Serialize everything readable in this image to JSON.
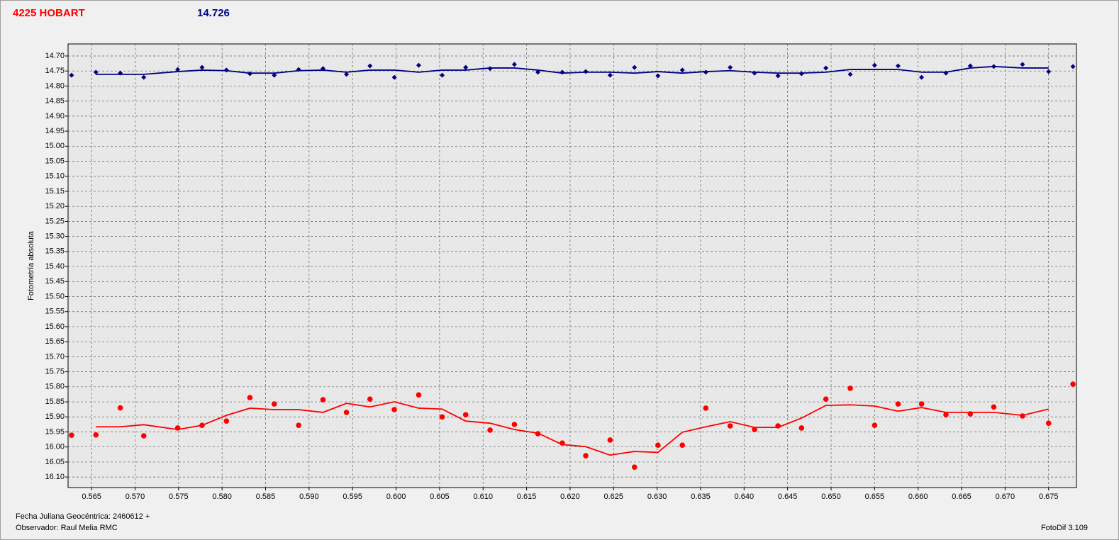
{
  "chart_data": {
    "type": "scatter",
    "title": "4225 HOBART",
    "subtitle": "14.726",
    "ylabel": "Fotometría absoluta",
    "xlabel": "Fecha Juliana Geocéntrica: 2460612 +",
    "observer": "Observador: Raul Melia RMC",
    "software": "FotoDif 3.109",
    "title_color": "#ff0000",
    "subtitle_color": "#000080",
    "y_inverted": true,
    "grid": true,
    "xlim": [
      0.5623,
      0.6782
    ],
    "ylim": [
      14.66,
      16.135
    ],
    "xticks": [
      0.565,
      {
        "value": 0.57,
        "label": "0.570"
      },
      0.575,
      {
        "value": 0.58,
        "label": "0.580"
      },
      0.585,
      {
        "value": 0.59,
        "label": "0.590"
      },
      0.595,
      {
        "value": 0.6,
        "label": "0.600"
      },
      0.605,
      {
        "value": 0.61,
        "label": "0.610"
      },
      0.615,
      {
        "value": 0.62,
        "label": "0.620"
      },
      0.625,
      {
        "value": 0.63,
        "label": "0.630"
      },
      0.635,
      {
        "value": 0.64,
        "label": "0.640"
      },
      0.645,
      {
        "value": 0.65,
        "label": "0.650"
      },
      0.655,
      {
        "value": 0.66,
        "label": "0.660"
      },
      0.665,
      {
        "value": 0.67,
        "label": "0.670"
      },
      0.675
    ],
    "yticks": [
      {
        "value": 14.7,
        "label": "14.70"
      },
      14.75,
      {
        "value": 14.8,
        "label": "14.80"
      },
      14.85,
      {
        "value": 14.9,
        "label": "14.90"
      },
      14.95,
      {
        "value": 15,
        "label": "15.00"
      },
      15.05,
      {
        "value": 15.1,
        "label": "15.10"
      },
      15.15,
      {
        "value": 15.2,
        "label": "15.20"
      },
      15.25,
      {
        "value": 15.3,
        "label": "15.30"
      },
      15.35,
      {
        "value": 15.4,
        "label": "15.40"
      },
      15.45,
      {
        "value": 15.5,
        "label": "15.50"
      },
      15.55,
      {
        "value": 15.6,
        "label": "15.60"
      },
      15.65,
      {
        "value": 15.7,
        "label": "15.70"
      },
      15.75,
      {
        "value": 15.8,
        "label": "15.80"
      },
      15.85,
      {
        "value": 15.9,
        "label": "15.90"
      },
      15.95,
      {
        "value": 16,
        "label": "16.00"
      },
      16.05,
      {
        "value": 16.1,
        "label": "16.10"
      }
    ],
    "x": [
      0.5627,
      0.5655,
      0.5683,
      0.571,
      0.5749,
      0.5777,
      0.5805,
      0.5832,
      0.586,
      0.5888,
      0.5916,
      0.5943,
      0.597,
      0.5998,
      0.6026,
      0.6053,
      0.608,
      0.6108,
      0.6136,
      0.6163,
      0.6191,
      0.6218,
      0.6246,
      0.6274,
      0.6301,
      0.6329,
      0.6356,
      0.6384,
      0.6412,
      0.6439,
      0.6466,
      0.6494,
      0.6522,
      0.655,
      0.6577,
      0.6604,
      0.6632,
      0.666,
      0.6687,
      0.672,
      0.675,
      0.6778
    ],
    "series": [
      {
        "mode": "markers",
        "marker": "diamond",
        "color": "#000080",
        "values": [
          14.764,
          14.754,
          14.757,
          14.771,
          14.745,
          14.738,
          14.747,
          14.759,
          14.764,
          14.745,
          14.742,
          14.761,
          14.733,
          14.771,
          14.731,
          14.764,
          14.738,
          14.742,
          14.728,
          14.754,
          14.754,
          14.752,
          14.764,
          14.738,
          14.766,
          14.747,
          14.754,
          14.738,
          14.757,
          14.766,
          14.759,
          14.74,
          14.761,
          14.731,
          14.733,
          14.771,
          14.757,
          14.733,
          14.735,
          14.728,
          14.752,
          14.735
        ]
      },
      {
        "mode": "line",
        "color": "#000080",
        "values": [
          null,
          14.761,
          14.761,
          14.761,
          14.752,
          14.747,
          14.749,
          14.757,
          14.757,
          14.749,
          14.747,
          14.754,
          14.747,
          14.747,
          14.754,
          14.747,
          14.747,
          14.74,
          14.74,
          14.747,
          14.757,
          14.754,
          14.754,
          14.757,
          14.752,
          14.757,
          14.752,
          14.749,
          14.754,
          14.757,
          14.757,
          14.754,
          14.745,
          14.745,
          14.745,
          14.754,
          14.754,
          14.74,
          14.735,
          14.74,
          14.74,
          null
        ]
      },
      {
        "mode": "markers",
        "marker": "circle",
        "color": "#ff0000",
        "values": [
          15.961,
          15.96,
          15.87,
          15.963,
          15.937,
          15.928,
          15.914,
          15.836,
          15.857,
          15.928,
          15.843,
          15.885,
          15.841,
          15.876,
          15.827,
          15.9,
          15.893,
          15.944,
          15.925,
          15.956,
          15.987,
          16.029,
          15.977,
          16.067,
          15.994,
          15.994,
          15.871,
          15.93,
          15.942,
          15.93,
          15.937,
          15.841,
          15.805,
          15.928,
          15.857,
          15.857,
          15.893,
          15.89,
          15.867,
          15.897,
          15.921,
          15.791
        ]
      },
      {
        "mode": "line",
        "color": "#ff0000",
        "values": [
          null,
          15.933,
          15.933,
          15.926,
          15.942,
          15.928,
          15.895,
          15.871,
          15.876,
          15.876,
          15.885,
          15.855,
          15.867,
          15.85,
          15.871,
          15.874,
          15.914,
          15.921,
          15.942,
          15.954,
          15.992,
          15.999,
          16.027,
          16.015,
          16.018,
          15.951,
          15.933,
          15.916,
          15.935,
          15.935,
          15.904,
          15.862,
          15.86,
          15.864,
          15.881,
          15.869,
          15.885,
          15.885,
          15.885,
          15.895,
          15.874,
          null
        ]
      }
    ]
  }
}
